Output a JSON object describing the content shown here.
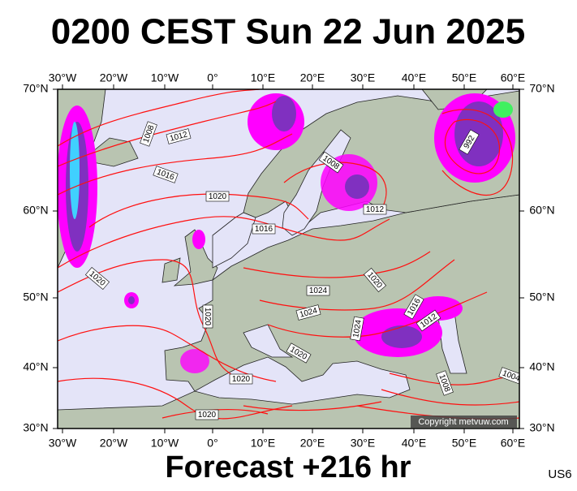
{
  "header": {
    "title": "0200 CEST Sun 22 Jun 2025"
  },
  "map": {
    "lon_labels": [
      "30°W",
      "20°W",
      "10°W",
      "0°",
      "10°E",
      "20°E",
      "30°E",
      "40°E",
      "50°E",
      "60°E"
    ],
    "lat_labels": [
      "70°N",
      "60°N",
      "50°N",
      "40°N",
      "30°N"
    ],
    "isobar_labels": [
      "1008",
      "1012",
      "1016",
      "1020",
      "1008",
      "1012",
      "1016",
      "992",
      "1020",
      "1020",
      "1024",
      "1024",
      "1020",
      "1016",
      "1012",
      "1024",
      "1020",
      "1020",
      "1020",
      "1008",
      "1004"
    ],
    "copyright": "Copyright metvuw.com"
  },
  "footer": {
    "forecast": "Forecast +216 hr",
    "model": "US6"
  }
}
